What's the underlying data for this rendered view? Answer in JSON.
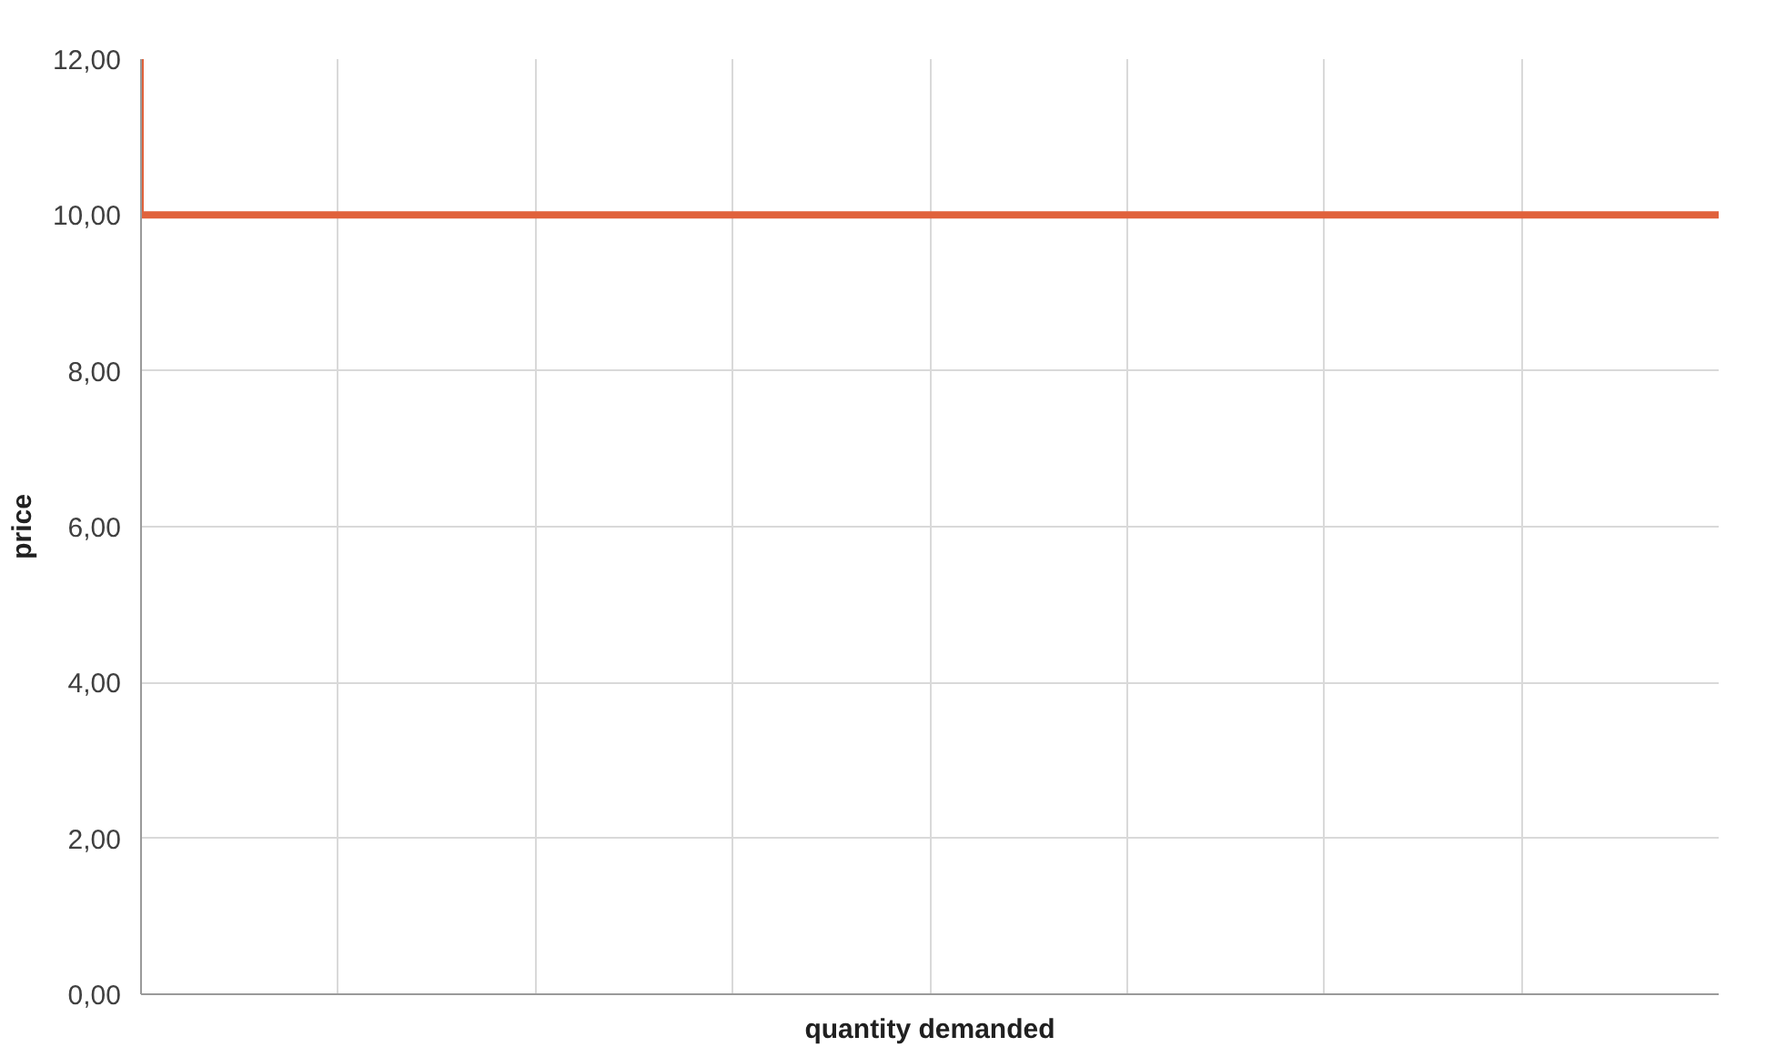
{
  "chart_data": {
    "type": "line",
    "xlabel": "quantity demanded",
    "ylabel": "price",
    "categories": [
      null,
      null,
      null,
      null,
      null,
      null,
      null,
      null,
      null
    ],
    "series": [
      {
        "color": "#e0623c",
        "values": [
          10,
          10,
          10,
          10,
          10,
          10,
          10,
          10,
          10
        ],
        "errors": [
          [
            10,
            12
          ],
          null,
          null,
          null,
          null,
          null,
          null,
          null,
          null
        ]
      }
    ],
    "ylim": [
      0,
      12
    ],
    "yticks": [
      {
        "value": 0,
        "label": "0,00"
      },
      {
        "value": 2,
        "label": "2,00"
      },
      {
        "value": 4,
        "label": "4,00"
      },
      {
        "value": 6,
        "label": "6,00"
      },
      {
        "value": 8,
        "label": "8,00"
      },
      {
        "value": 10,
        "label": "10,00"
      },
      {
        "value": 12,
        "label": "12,00"
      }
    ],
    "grid": true
  }
}
